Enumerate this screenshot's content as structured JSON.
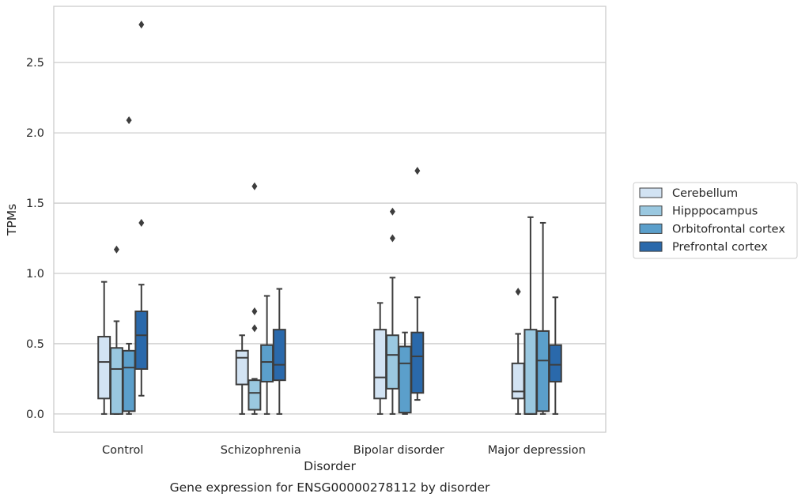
{
  "caption": "Gene expression for ENSG00000278112 by disorder",
  "chart_data": {
    "type": "boxplot",
    "xlabel": "Disorder",
    "ylabel": "TPMs",
    "ylim": [
      -0.13,
      2.9
    ],
    "yticks": [
      0.0,
      0.5,
      1.0,
      1.5,
      2.0,
      2.5
    ],
    "ytick_labels": [
      "0.0",
      "0.5",
      "1.0",
      "1.5",
      "2.0",
      "2.5"
    ],
    "grid": "horizontal",
    "legend_position": "right",
    "categories": [
      "Control",
      "Schizophrenia",
      "Bipolar disorder",
      "Major depression"
    ],
    "series": [
      {
        "name": "Cerebellum",
        "color": "#d2e3f3",
        "boxes": [
          {
            "min": 0.0,
            "q1": 0.11,
            "median": 0.37,
            "q3": 0.55,
            "max": 0.94,
            "outliers": []
          },
          {
            "min": 0.0,
            "q1": 0.21,
            "median": 0.4,
            "q3": 0.45,
            "max": 0.56,
            "outliers": []
          },
          {
            "min": 0.0,
            "q1": 0.11,
            "median": 0.26,
            "q3": 0.6,
            "max": 0.79,
            "outliers": []
          },
          {
            "min": 0.0,
            "q1": 0.11,
            "median": 0.16,
            "q3": 0.36,
            "max": 0.57,
            "outliers": [
              0.87
            ]
          }
        ]
      },
      {
        "name": "Hipppocampus",
        "color": "#9ac8e0",
        "boxes": [
          {
            "min": 0.0,
            "q1": 0.0,
            "median": 0.32,
            "q3": 0.47,
            "max": 0.66,
            "outliers": [
              1.17
            ]
          },
          {
            "min": 0.0,
            "q1": 0.03,
            "median": 0.15,
            "q3": 0.24,
            "max": 0.25,
            "outliers": [
              0.61,
              0.73,
              1.62
            ]
          },
          {
            "min": 0.0,
            "q1": 0.18,
            "median": 0.42,
            "q3": 0.56,
            "max": 0.97,
            "outliers": [
              1.25,
              1.44
            ]
          },
          {
            "min": 0.0,
            "q1": 0.0,
            "median": 0.0,
            "q3": 0.6,
            "max": 1.4,
            "outliers": []
          }
        ]
      },
      {
        "name": "Orbitofrontal cortex",
        "color": "#5b9fcb",
        "boxes": [
          {
            "min": 0.0,
            "q1": 0.02,
            "median": 0.33,
            "q3": 0.45,
            "max": 0.5,
            "outliers": [
              2.09
            ]
          },
          {
            "min": 0.0,
            "q1": 0.23,
            "median": 0.37,
            "q3": 0.49,
            "max": 0.84,
            "outliers": []
          },
          {
            "min": 0.0,
            "q1": 0.01,
            "median": 0.36,
            "q3": 0.48,
            "max": 0.58,
            "outliers": []
          },
          {
            "min": 0.0,
            "q1": 0.02,
            "median": 0.38,
            "q3": 0.59,
            "max": 1.36,
            "outliers": []
          }
        ]
      },
      {
        "name": "Prefrontal cortex",
        "color": "#2a69ab",
        "boxes": [
          {
            "min": 0.13,
            "q1": 0.32,
            "median": 0.56,
            "q3": 0.73,
            "max": 0.92,
            "outliers": [
              1.36,
              2.77
            ]
          },
          {
            "min": 0.0,
            "q1": 0.24,
            "median": 0.35,
            "q3": 0.6,
            "max": 0.89,
            "outliers": []
          },
          {
            "min": 0.1,
            "q1": 0.15,
            "median": 0.41,
            "q3": 0.58,
            "max": 0.83,
            "outliers": [
              1.73
            ]
          },
          {
            "min": 0.0,
            "q1": 0.23,
            "median": 0.35,
            "q3": 0.49,
            "max": 0.83,
            "outliers": []
          }
        ]
      }
    ]
  }
}
